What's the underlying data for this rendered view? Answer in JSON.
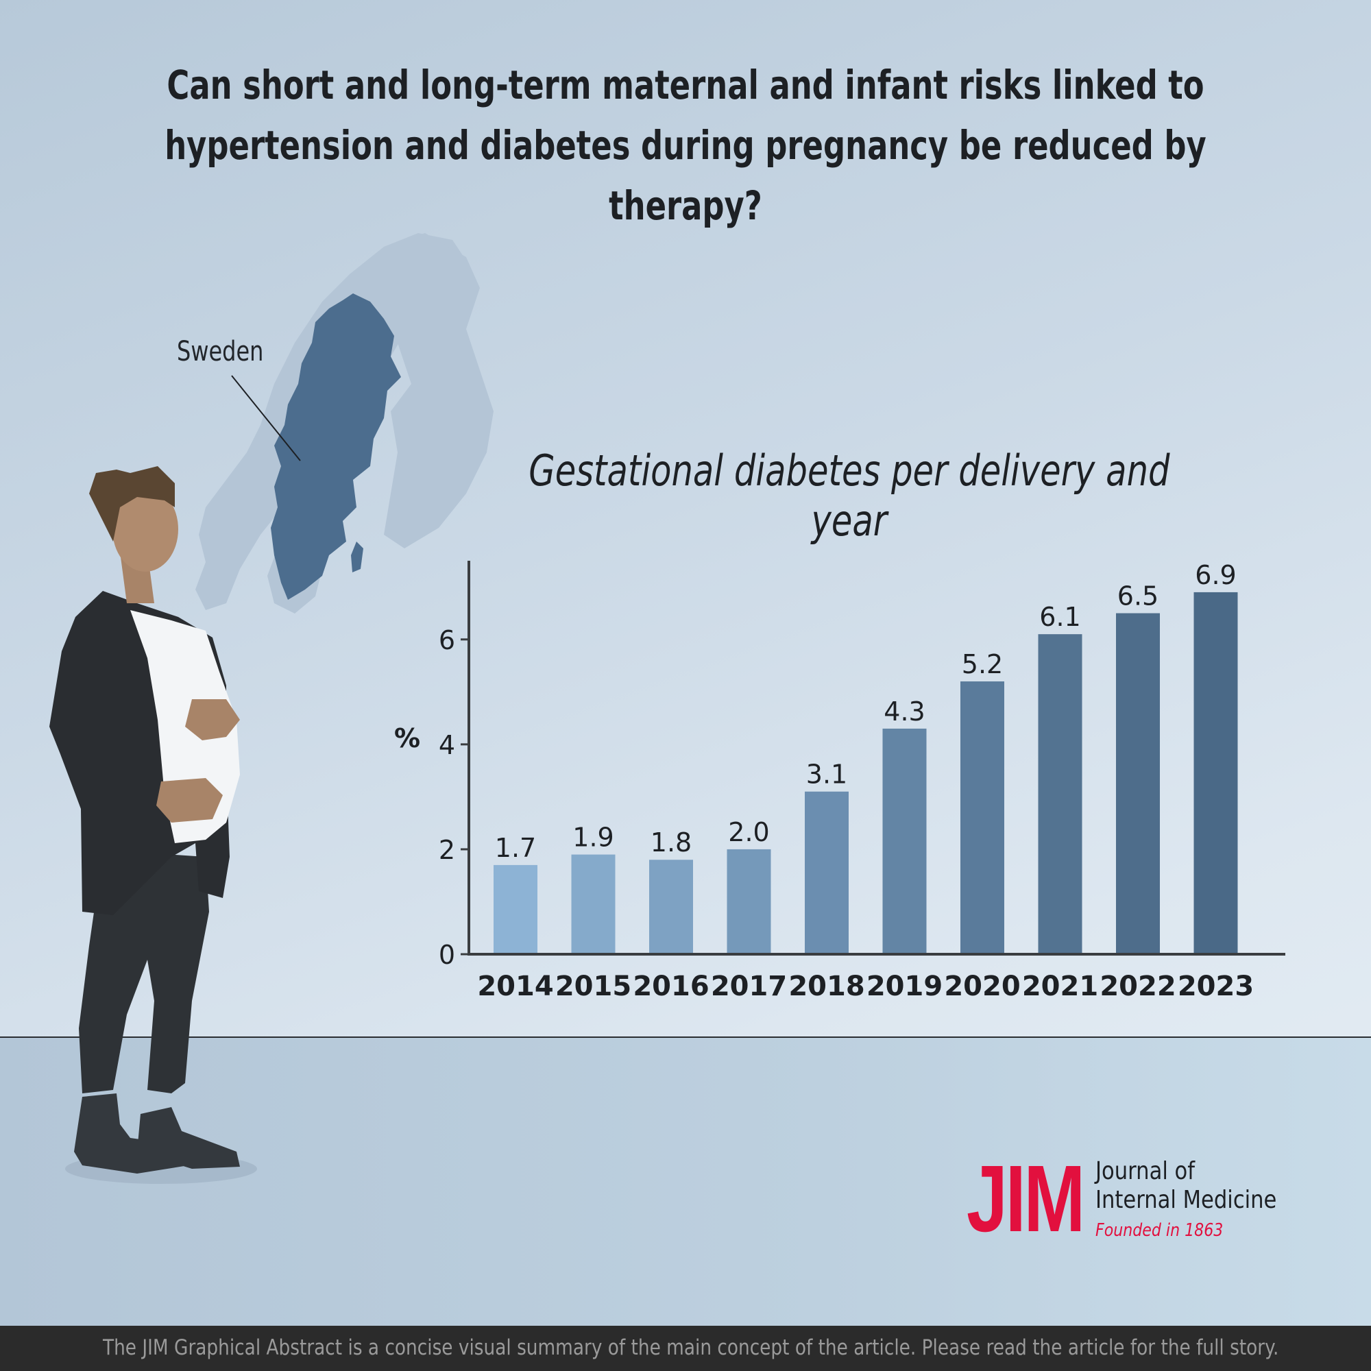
{
  "header": {
    "title_line1": "Can short and long-term maternal and infant risks linked to",
    "title_line2": "hypertension and diabetes during pregnancy be reduced by therapy?"
  },
  "map": {
    "label": "Sweden"
  },
  "chart_data": {
    "type": "bar",
    "title": "Gestational diabetes per delivery and year",
    "xlabel": "",
    "ylabel": "%",
    "categories": [
      "2014",
      "2015",
      "2016",
      "2017",
      "2018",
      "2019",
      "2020",
      "2021",
      "2022",
      "2023"
    ],
    "values": [
      1.7,
      1.9,
      1.8,
      2.0,
      3.1,
      4.3,
      5.2,
      6.1,
      6.5,
      6.9
    ],
    "value_labels": [
      "1.7",
      "1.9",
      "1.8",
      "2.0",
      "3.1",
      "4.3",
      "5.2",
      "6.1",
      "6.5",
      "6.9"
    ],
    "ylim": [
      0,
      7.5
    ],
    "yticks": [
      "0",
      "2",
      "4",
      "6"
    ],
    "grid": false,
    "legend": "none",
    "colors": [
      "#8db3d5",
      "#85aacb",
      "#7ea2c3",
      "#7599ba",
      "#6b8eb0",
      "#6385a5",
      "#5a7b9b",
      "#537391",
      "#4e6d8b",
      "#4a6987"
    ]
  },
  "logo": {
    "mark": "JIM",
    "name_line1": "Journal of",
    "name_line2": "Internal Medicine",
    "tagline": "Founded in 1863"
  },
  "footer": {
    "text": "The JIM Graphical Abstract is a concise visual summary of the main concept of the article. Please read the article for the full story."
  },
  "colors": {
    "accent": "#e2103e",
    "text": "#1d2024",
    "map_sweden": "#4c6d8e",
    "map_neighbors": "#b4c5d6"
  }
}
